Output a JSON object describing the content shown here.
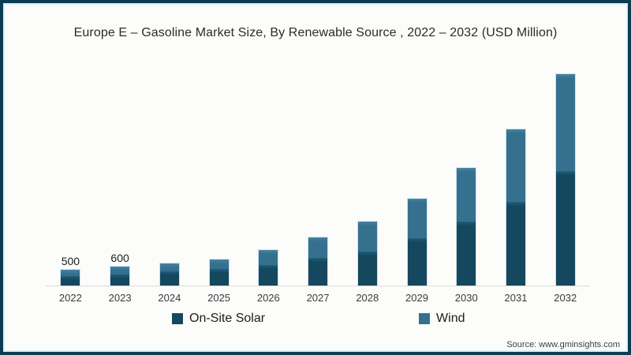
{
  "title": "Europe E – Gasoline Market Size, By Renewable Source , 2022 – 2032 (USD Million)",
  "source": "Source: www.gminsights.com",
  "colors": {
    "frame_border": "#0d3d53",
    "background": "#fcfcfa",
    "axis_line": "#dcdcdc",
    "on_site_solar": "#15485E",
    "wind": "#36708F"
  },
  "legend": {
    "position": "bottom",
    "items": [
      {
        "label": "On-Site Solar",
        "color": "#15485E"
      },
      {
        "label": "Wind",
        "color": "#36708F"
      }
    ]
  },
  "chart_data": {
    "type": "bar",
    "stacked": true,
    "title": "Europe E – Gasoline Market Size, By Renewable Source , 2022 – 2032 (USD Million)",
    "unit": "USD Million",
    "categories": [
      "2022",
      "2023",
      "2024",
      "2025",
      "2026",
      "2027",
      "2028",
      "2029",
      "2030",
      "2031",
      "2032"
    ],
    "series": [
      {
        "name": "On-Site Solar",
        "color": "#15485E",
        "color_light": "#1E5E7A",
        "values": [
          300,
          360,
          440,
          520,
          650,
          870,
          1075,
          1500,
          2025,
          2650,
          3625
        ]
      },
      {
        "name": "Wind",
        "color": "#36708F",
        "color_light": "#4484A4",
        "values": [
          200,
          240,
          260,
          310,
          475,
          650,
          950,
          1250,
          1700,
          2300,
          3075
        ]
      }
    ],
    "totals": [
      500,
      600,
      700,
      830,
      1125,
      1520,
      2025,
      2750,
      3725,
      4950,
      6700
    ],
    "data_labels": [
      500,
      600,
      null,
      null,
      null,
      null,
      null,
      null,
      null,
      null,
      null
    ],
    "ylim": [
      0,
      7250
    ],
    "y_axis_visible": false,
    "grid": false,
    "note": "Only 2022 (500) and 2023 (600) carry printed data labels; other totals estimated from bar heights"
  }
}
